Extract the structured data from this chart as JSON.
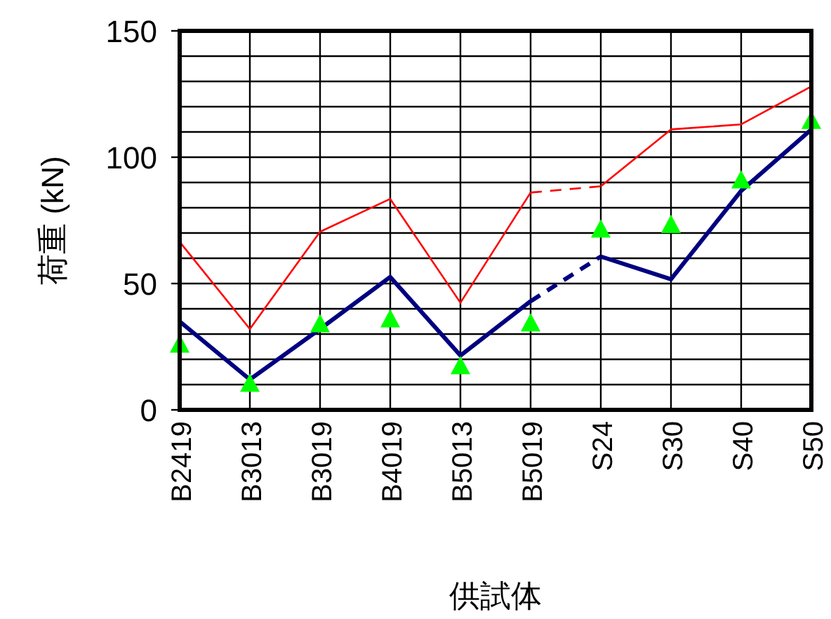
{
  "chart_data": {
    "type": "line",
    "xlabel": "供試体",
    "ylabel": "荷重 (kN)",
    "categories": [
      "B2419",
      "B3013",
      "B3019",
      "B4019",
      "B5013",
      "B5019",
      "S24",
      "S30",
      "S40",
      "S50"
    ],
    "series": [
      {
        "color": "#ff0000",
        "line_style": "solid",
        "values": [
          66.5,
          32,
          70.5,
          83.5,
          42.4,
          86,
          null,
          null,
          null,
          null
        ]
      },
      {
        "color": "#ff0000",
        "line_style": "dashed",
        "values": [
          null,
          null,
          null,
          null,
          null,
          86,
          88.5,
          null,
          null,
          null
        ]
      },
      {
        "color": "#ff0000",
        "line_style": "solid",
        "values": [
          null,
          null,
          null,
          null,
          null,
          null,
          88.5,
          111,
          113,
          128
        ]
      },
      {
        "color": "#000080",
        "line_style": "solid",
        "values": [
          35,
          12,
          32,
          52.6,
          21.5,
          43,
          null,
          null,
          null,
          null
        ]
      },
      {
        "color": "#000080",
        "line_style": "dashed",
        "values": [
          null,
          null,
          null,
          null,
          null,
          43,
          60.7,
          null,
          null,
          null
        ]
      },
      {
        "color": "#000080",
        "line_style": "solid",
        "values": [
          null,
          null,
          null,
          null,
          null,
          null,
          60.7,
          51.7,
          86.7,
          111
        ]
      },
      {
        "type": "scatter",
        "marker": "triangle",
        "color": "#00ff00",
        "values": [
          26,
          10.5,
          34,
          36,
          17.4,
          34.4,
          71.5,
          73.3,
          91,
          114.5
        ]
      }
    ],
    "ylim": [
      0,
      150
    ],
    "yticks": [
      0,
      {
        "value": 10,
        "label": null
      },
      {
        "value": 20,
        "label": null
      },
      {
        "value": 30,
        "label": null
      },
      {
        "value": 40,
        "label": null
      },
      50,
      {
        "value": 60,
        "label": null
      },
      {
        "value": 70,
        "label": null
      },
      {
        "value": 80,
        "label": null
      },
      {
        "value": 90,
        "label": null
      },
      100,
      {
        "value": 110,
        "label": null
      },
      {
        "value": 120,
        "label": null
      },
      {
        "value": 130,
        "label": null
      },
      {
        "value": 140,
        "label": null
      },
      150
    ],
    "grid": true
  }
}
